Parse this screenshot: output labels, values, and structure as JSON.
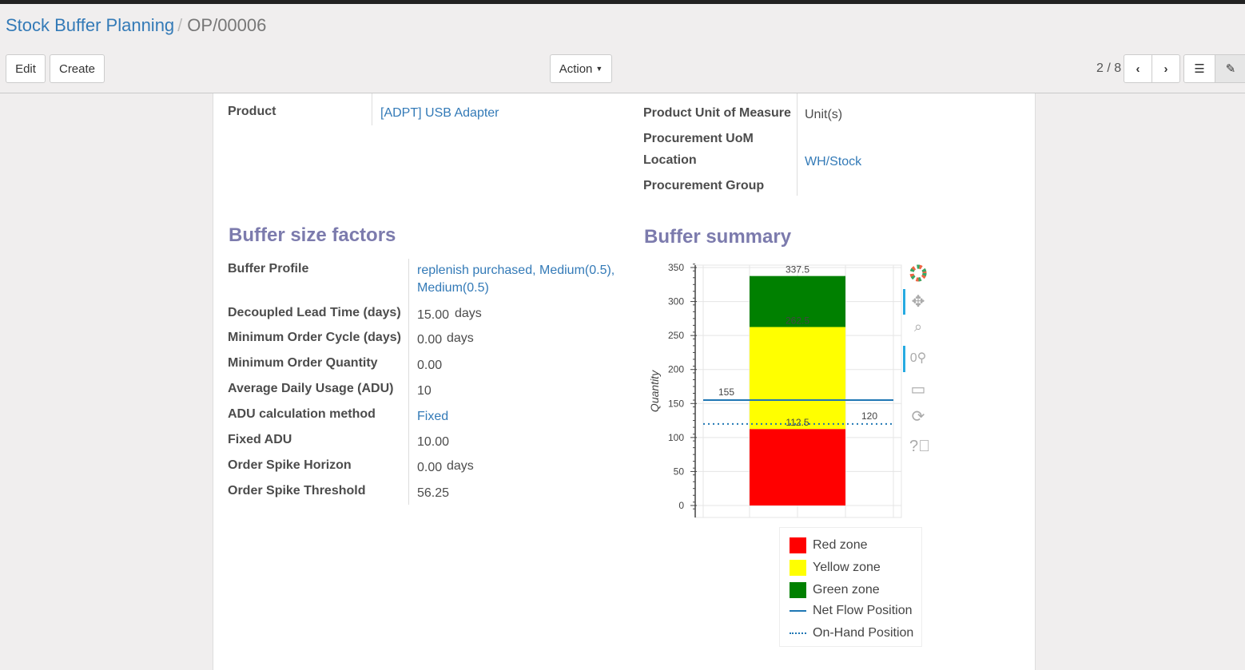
{
  "breadcrumb": {
    "parent": "Stock Buffer Planning",
    "current": "OP/00006"
  },
  "toolbar": {
    "edit": "Edit",
    "create": "Create",
    "action": "Action",
    "pager": "2 / 8"
  },
  "form": {
    "product_label": "Product",
    "product_value": "[ADPT] USB Adapter",
    "uom_label": "Product Unit of Measure",
    "uom_value": "Unit(s)",
    "proc_uom_label": "Procurement UoM",
    "location_label": "Location",
    "location_value": "WH/Stock",
    "group_label": "Procurement Group"
  },
  "factors": {
    "title": "Buffer size factors",
    "rows": [
      {
        "label": "Buffer Profile",
        "value": "replenish purchased, Medium(0.5), Medium(0.5)",
        "link": true
      },
      {
        "label": "Decoupled Lead Time (days)",
        "value": "15.00",
        "unit": "days"
      },
      {
        "label": "Minimum Order Cycle (days)",
        "value": "0.00",
        "unit": "days"
      },
      {
        "label": "Minimum Order Quantity",
        "value": "0.00"
      },
      {
        "label": "Average Daily Usage (ADU)",
        "value": "10"
      },
      {
        "label": "ADU calculation method",
        "value": "Fixed",
        "link": true
      },
      {
        "label": "Fixed ADU",
        "value": "10.00"
      },
      {
        "label": "Order Spike Horizon",
        "value": "0.00",
        "unit": "days"
      },
      {
        "label": "Order Spike Threshold",
        "value": "56.25"
      }
    ]
  },
  "summary": {
    "title": "Buffer summary"
  },
  "chart_data": {
    "type": "bar",
    "ylabel": "Quantity",
    "ylim": [
      -7,
      355
    ],
    "yticks": [
      0,
      50,
      100,
      150,
      200,
      250,
      300,
      350
    ],
    "grid": true,
    "stacked_segments": [
      {
        "name": "Red zone",
        "from": 0,
        "to": 112.5,
        "color": "#ff0000",
        "label": "112.5"
      },
      {
        "name": "Yellow zone",
        "from": 112.5,
        "to": 262.5,
        "color": "#ffff00",
        "label": "262.5"
      },
      {
        "name": "Green zone",
        "from": 262.5,
        "to": 337.5,
        "color": "#008000",
        "label": "337.5"
      }
    ],
    "lines": [
      {
        "name": "Net Flow Position",
        "value": 155,
        "style": "solid",
        "color": "#1f77b4",
        "label": "155"
      },
      {
        "name": "On-Hand Position",
        "value": 120,
        "style": "dotted",
        "color": "#1f77b4",
        "label": "120"
      }
    ],
    "legend": "below-right"
  }
}
